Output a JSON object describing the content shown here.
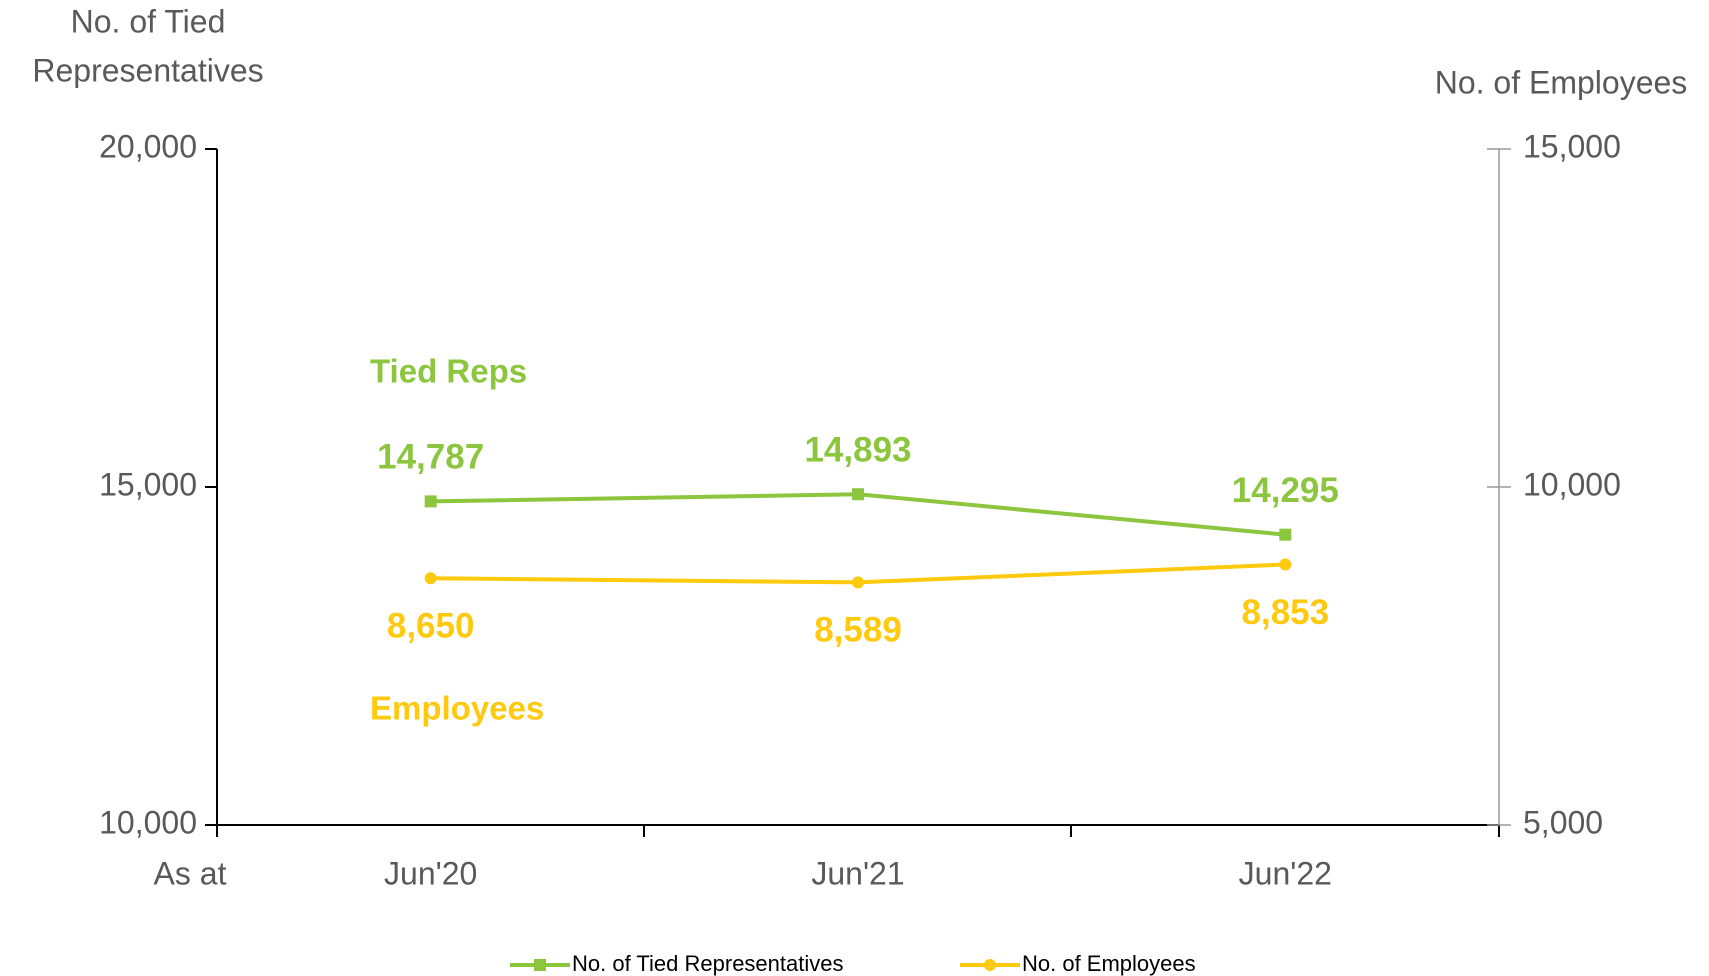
{
  "chart_data": {
    "type": "line",
    "ylabel": [
      "No. of Tied",
      "Representatives"
    ],
    "y2label": "No. of Employees",
    "xlabel": "As at",
    "categories": [
      "Jun'20",
      "Jun'21",
      "Jun'22"
    ],
    "series": [
      {
        "name": "No. of Tied Representatives",
        "color": "#8cc63f",
        "axis": "y",
        "marker": "square",
        "values": [
          14787,
          14893,
          14295
        ],
        "value_labels": [
          "14,787",
          "14,893",
          "14,295"
        ]
      },
      {
        "name": "No. of Employees",
        "color": "#ffc90e",
        "axis": "y2",
        "marker": "circle",
        "values": [
          8650,
          8589,
          8853
        ],
        "value_labels": [
          "8,650",
          "8,589",
          "8,853"
        ]
      }
    ],
    "annotations": [
      {
        "text": "Tied Reps",
        "color": "#8cc63f"
      },
      {
        "text": "Employees",
        "color": "#ffc90e"
      }
    ],
    "ylim": [
      10000,
      20000
    ],
    "yticks": [
      {
        "value": 10000,
        "label": "10,000"
      },
      {
        "value": 15000,
        "label": "15,000"
      },
      {
        "value": 20000,
        "label": "20,000"
      }
    ],
    "y2lim": [
      5000,
      15000
    ],
    "y2ticks": [
      {
        "value": 5000,
        "label": "5,000"
      },
      {
        "value": 10000,
        "label": "10,000"
      },
      {
        "value": 15000,
        "label": "15,000"
      }
    ],
    "legend": "bottom"
  }
}
